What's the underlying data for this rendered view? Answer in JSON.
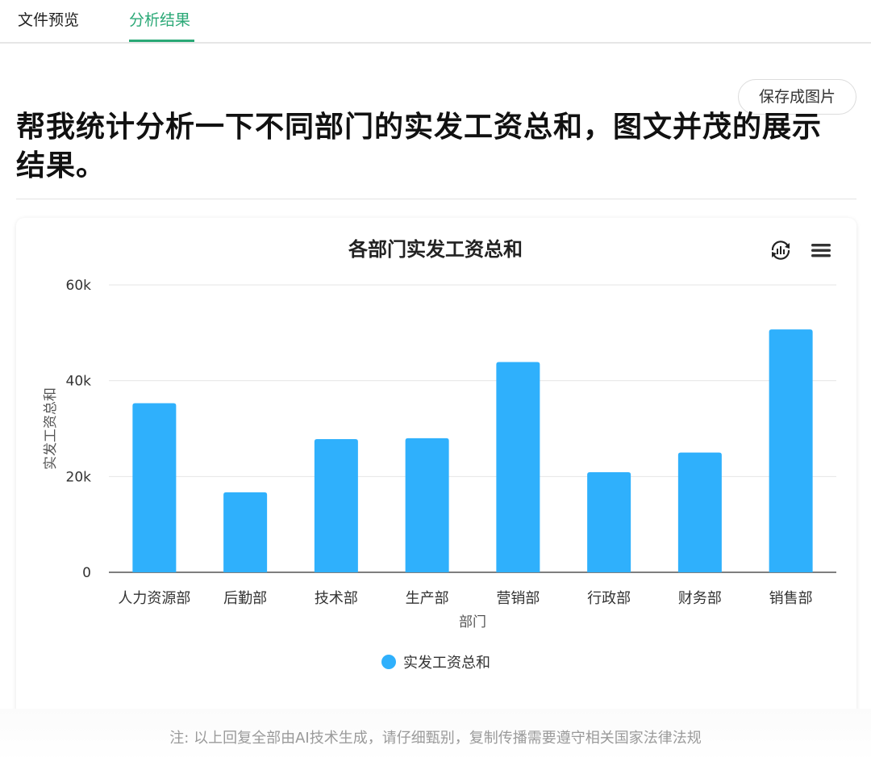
{
  "tabs": {
    "preview_label": "文件预览",
    "result_label": "分析结果"
  },
  "save_button_label": "保存成图片",
  "question": "帮我统计分析一下不同部门的实发工资总和，图文并茂的展示结果。",
  "chart_data": {
    "type": "bar",
    "title": "各部门实发工资总和",
    "xlabel": "部门",
    "ylabel": "实发工资总和",
    "categories": [
      "人力资源部",
      "后勤部",
      "技术部",
      "生产部",
      "营销部",
      "行政部",
      "财务部",
      "销售部"
    ],
    "series": [
      {
        "name": "实发工资总和",
        "values": [
          35300,
          16700,
          27800,
          28000,
          43900,
          20900,
          25000,
          50700
        ]
      }
    ],
    "ylim": [
      0,
      60000
    ],
    "yticks": [
      0,
      20000,
      40000,
      60000
    ],
    "ytick_labels": [
      "0",
      "20k",
      "40k",
      "60k"
    ],
    "grid": true,
    "legend": "bottom",
    "bar_color": "#2fb0fc"
  },
  "icons": {
    "chart_type_toggle": "chart-switch-icon",
    "menu": "hamburger-menu-icon"
  },
  "footer_note": "注: 以上回复全部由AI技术生成，请仔细甄别，复制传播需要遵守相关国家法律法规"
}
